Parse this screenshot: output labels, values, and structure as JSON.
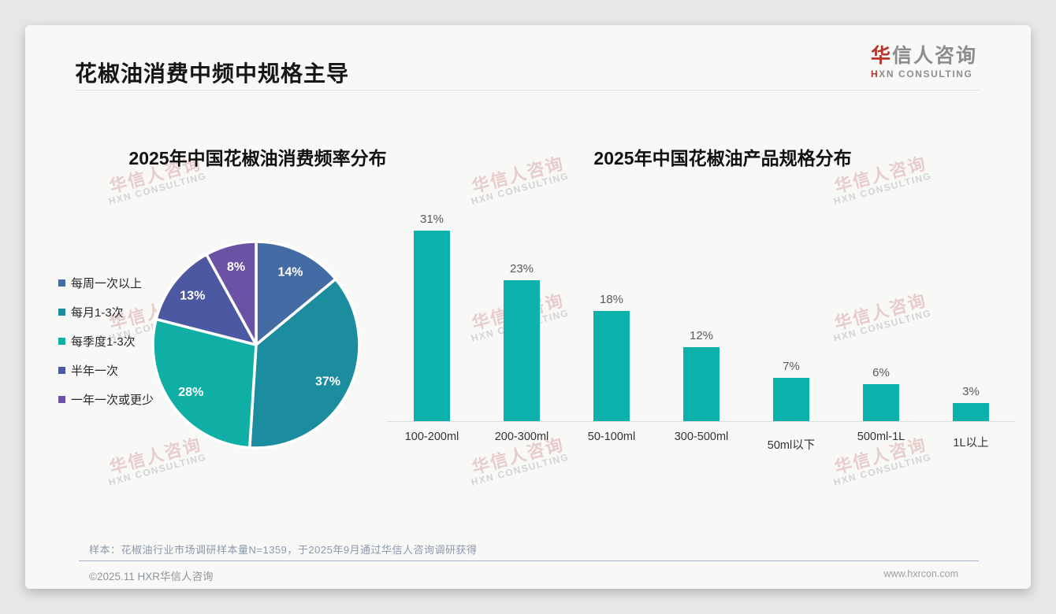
{
  "page": {
    "title": "花椒油消费中频中规格主导",
    "logo": {
      "zh_accent": "华",
      "zh_rest": "信人咨询",
      "en_accent": "H",
      "en_rest": "XN CONSULTING"
    },
    "watermark": {
      "line1": "华信人咨询",
      "line2": "HXN CONSULTING"
    },
    "footnote": "样本：花椒油行业市场调研样本量N=1359，于2025年9月通过华信人咨询调研获得",
    "copyright": "©2025.11 HXR华信人咨询",
    "website": "www.hxrcon.com"
  },
  "colors": {
    "accent_red": "#b5342c",
    "bar_teal": "#0db1ab",
    "pie_palette": [
      "#446ba3",
      "#1b8d9e",
      "#0fafa5",
      "#4d58a3",
      "#6a52a5"
    ]
  },
  "chart_data": [
    {
      "type": "pie",
      "title": "2025年中国花椒油消费频率分布",
      "categories": [
        "每周一次以上",
        "每月1-3次",
        "每季度1-3次",
        "半年一次",
        "一年一次或更少"
      ],
      "values": [
        14,
        37,
        28,
        13,
        8
      ],
      "unit": "%",
      "colors": [
        "#446ba3",
        "#1b8d9e",
        "#0fafa5",
        "#4d58a3",
        "#6a52a5"
      ],
      "legend_position": "left",
      "labels": "percent-inside-white",
      "start_angle_deg": -90,
      "direction": "clockwise"
    },
    {
      "type": "bar",
      "title": "2025年中国花椒油产品规格分布",
      "categories": [
        "100-200ml",
        "200-300ml",
        "50-100ml",
        "300-500ml",
        "50ml以下",
        "500ml-1L",
        "1L以上"
      ],
      "values": [
        31,
        23,
        18,
        12,
        7,
        6,
        3
      ],
      "unit": "%",
      "bar_color": "#0db1ab",
      "ylim": [
        0,
        35
      ],
      "grid": false,
      "value_labels": "above"
    }
  ]
}
